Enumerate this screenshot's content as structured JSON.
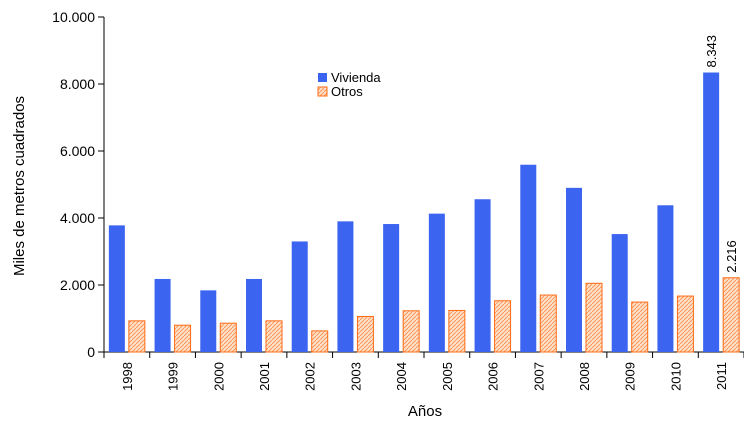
{
  "chart_data": {
    "type": "bar",
    "xlabel": "Años",
    "ylabel": "Miles de metros cuadrados",
    "ylim": [
      0,
      10000
    ],
    "yticks": [
      "0",
      "2.000",
      "4.000",
      "6.000",
      "8.000",
      "10.000"
    ],
    "ytick_values": [
      0,
      2000,
      4000,
      6000,
      8000,
      10000
    ],
    "categories": [
      "1998",
      "1999",
      "2000",
      "2001",
      "2002",
      "2003",
      "2004",
      "2005",
      "2006",
      "2007",
      "2008",
      "2009",
      "2010",
      "2011"
    ],
    "series": [
      {
        "name": "Vivienda",
        "color": "#3b64f0",
        "values": [
          3780,
          2180,
          1840,
          2180,
          3300,
          3900,
          3820,
          4130,
          4560,
          5590,
          4900,
          3520,
          4380,
          8343
        ]
      },
      {
        "name": "Otros",
        "color": "#ff6a13",
        "fill_pattern": "hatched",
        "values": [
          930,
          800,
          860,
          930,
          630,
          1060,
          1230,
          1240,
          1530,
          1700,
          2050,
          1490,
          1670,
          2216
        ]
      }
    ],
    "data_labels": [
      {
        "series": "Vivienda",
        "category": "2011",
        "text": "8.343"
      },
      {
        "series": "Otros",
        "category": "2011",
        "text": "2.216"
      }
    ],
    "legend": {
      "position": "top-center-left"
    },
    "grid": false
  }
}
